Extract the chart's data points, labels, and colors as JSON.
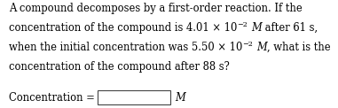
{
  "bg_color": "#ffffff",
  "text_color": "#000000",
  "figsize": [
    3.81,
    1.22
  ],
  "dpi": 100,
  "line1": "A compound decomposes by a first-order reaction. If the",
  "line2_pre": "concentration of the compound is 4.01 × 10",
  "line2_sup": "−2",
  "line2_mid": " ",
  "line2_M": "M",
  "line2_post": " after 61 s,",
  "line3_pre": "when the initial concentration was 5.50 × 10",
  "line3_sup": "−2",
  "line3_M": "M",
  "line3_post": ", what is the",
  "line4": "concentration of the compound after 88 s?",
  "label": "Concentration =",
  "unit": "M",
  "font_size": 8.3,
  "sup_font_size": 5.8
}
